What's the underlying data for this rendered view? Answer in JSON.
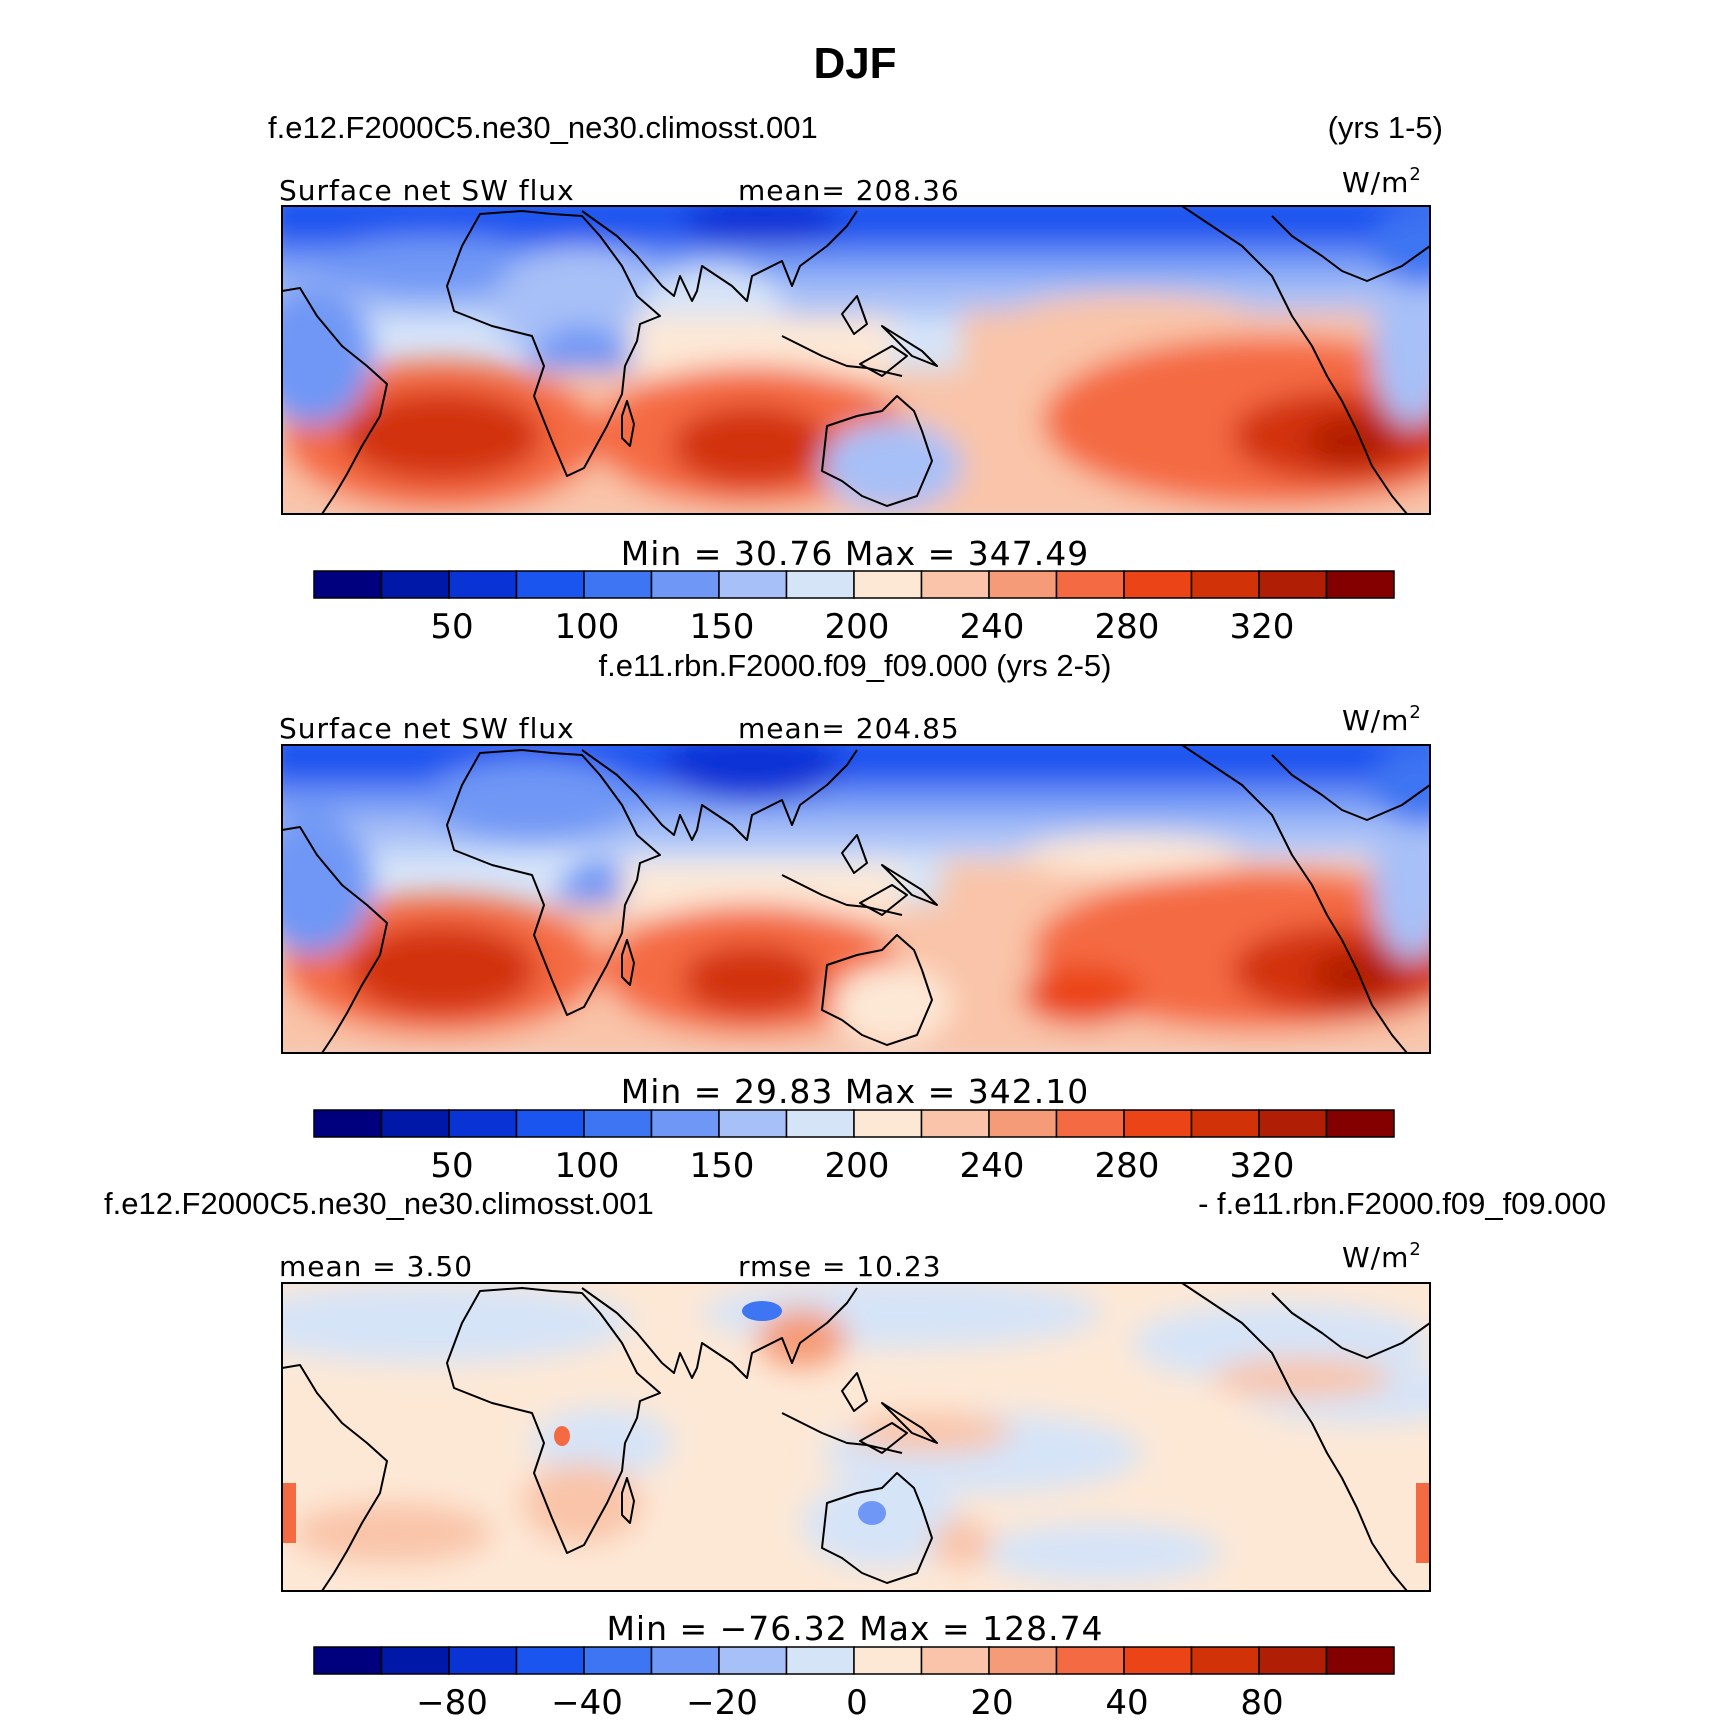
{
  "title": "DJF",
  "units": "W/m",
  "units_sup": "2",
  "chart_data": [
    {
      "type": "heatmap",
      "case_label": "f.e12.F2000C5.ne30_ne30.climosst.001",
      "years_label": "(yrs 1-5)",
      "field_label": "Surface net SW flux",
      "stat_label": "mean=  208.36",
      "minmax_label": "Min  =    30.76  Max  =  347.49",
      "min": 30.76,
      "max": 347.49,
      "mean": 208.36,
      "colorbar_ticks": [
        "50",
        "100",
        "150",
        "200",
        "240",
        "280",
        "320"
      ],
      "contour_levels": [
        25,
        50,
        75,
        100,
        125,
        150,
        175,
        200,
        220,
        240,
        260,
        280,
        300,
        320
      ]
    },
    {
      "type": "heatmap",
      "case_label": "f.e11.rbn.F2000.f09_f09.000 (yrs 2-5)",
      "field_label": "Surface net SW flux",
      "stat_label": "mean=  204.85",
      "minmax_label": "Min  =    29.83  Max  =  342.10",
      "min": 29.83,
      "max": 342.1,
      "mean": 204.85,
      "colorbar_ticks": [
        "50",
        "100",
        "150",
        "200",
        "240",
        "280",
        "320"
      ],
      "contour_levels": [
        25,
        50,
        75,
        100,
        125,
        150,
        175,
        200,
        220,
        240,
        260,
        280,
        300,
        320
      ]
    },
    {
      "type": "heatmap",
      "case_label": "f.e12.F2000C5.ne30_ne30.climosst.001",
      "case_label_right": "- f.e11.rbn.F2000.f09_f09.000",
      "mean_label": "mean  =     3.50",
      "rmse_label": "rmse  =   10.23",
      "minmax_label": "Min  =  −76.32  Max  =  128.74",
      "min": -76.32,
      "max": 128.74,
      "mean": 3.5,
      "rmse": 10.23,
      "colorbar_ticks": [
        "−80",
        "−40",
        "−20",
        "0",
        "20",
        "40",
        "80"
      ],
      "contour_levels": [
        -100,
        -80,
        -60,
        -40,
        -30,
        -20,
        -10,
        0,
        10,
        20,
        30,
        40,
        60,
        80
      ]
    }
  ],
  "palette": [
    "#00007f",
    "#0018a8",
    "#0a33d6",
    "#1a55ef",
    "#3d75f2",
    "#6f97f5",
    "#a7c0f7",
    "#d6e4f8",
    "#fde8d6",
    "#f9c4a9",
    "#f59b78",
    "#f46a43",
    "#eb4416",
    "#d23208",
    "#b01e05",
    "#840000"
  ]
}
